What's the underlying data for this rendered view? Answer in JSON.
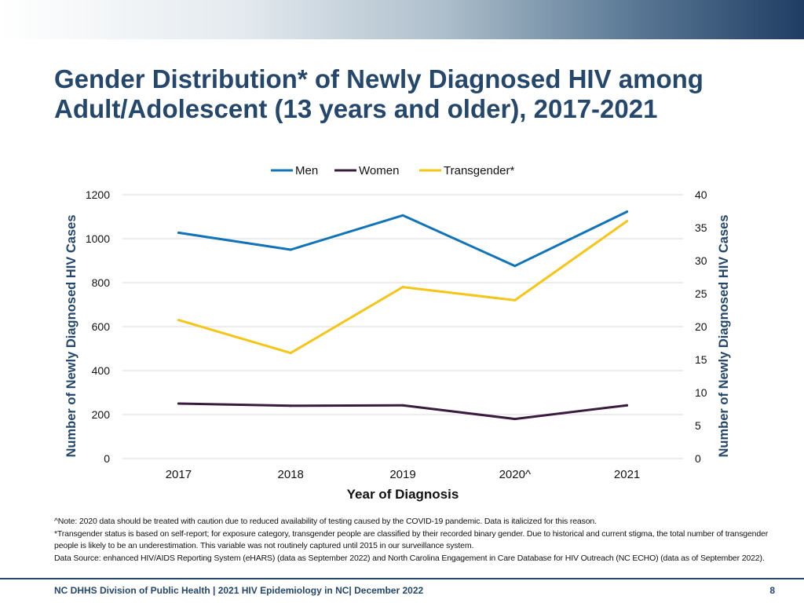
{
  "title_line1": "Gender Distribution* of Newly Diagnosed HIV among",
  "title_line2": "Adult/Adolescent (13 years and older), 2017-2021",
  "chart_data": {
    "type": "line",
    "categories": [
      "2017",
      "2018",
      "2019",
      "2020^",
      "2021"
    ],
    "xlabel": "Year of Diagnosis",
    "ylabel_left": "Number of Newly Diagnosed HIV Cases",
    "ylabel_right": "Number of Newly Diagnosed HIV Cases",
    "ylim_left": [
      0,
      1200
    ],
    "ylim_right": [
      0,
      40
    ],
    "yticks_left": [
      "0",
      "200",
      "400",
      "600",
      "800",
      "1000",
      "1200"
    ],
    "yticks_right": [
      "0",
      "5",
      "10",
      "15",
      "20",
      "25",
      "30",
      "35",
      "40"
    ],
    "grid": true,
    "legend_position": "top-center",
    "series": [
      {
        "name": "Men",
        "axis": "left",
        "color": "#1173b8",
        "values": [
          1027,
          950,
          1106,
          876,
          1123
        ]
      },
      {
        "name": "Women",
        "axis": "left",
        "color": "#3b1a3f",
        "values": [
          250,
          240,
          242,
          180,
          242
        ]
      },
      {
        "name": "Transgender*",
        "axis": "right",
        "color": "#f5c518",
        "values": [
          21,
          16,
          26,
          24,
          36
        ]
      }
    ]
  },
  "notes": [
    "^Note: 2020 data should be treated with caution due to reduced availability  of testing caused by the COVID-19 pandemic. Data is italicized for this reason.",
    "*Transgender status is based on self-report; for exposure category, transgender people are classified by their recorded binary gender. Due to historical and current stigma, the total number of transgender people is likely to be an underestimation. This variable was not routinely captured until 2015 in our surveillance system.",
    "Data Source: enhanced HIV/AIDS Reporting System (eHARS) (data as September 2022) and North Carolina Engagement in Care Database for HIV Outreach (NC ECHO) (data as of September 2022)."
  ],
  "footer": {
    "left": "NC DHHS Division of Public Health | 2021 HIV Epidemiology in NC| December 2022",
    "page": "8"
  }
}
